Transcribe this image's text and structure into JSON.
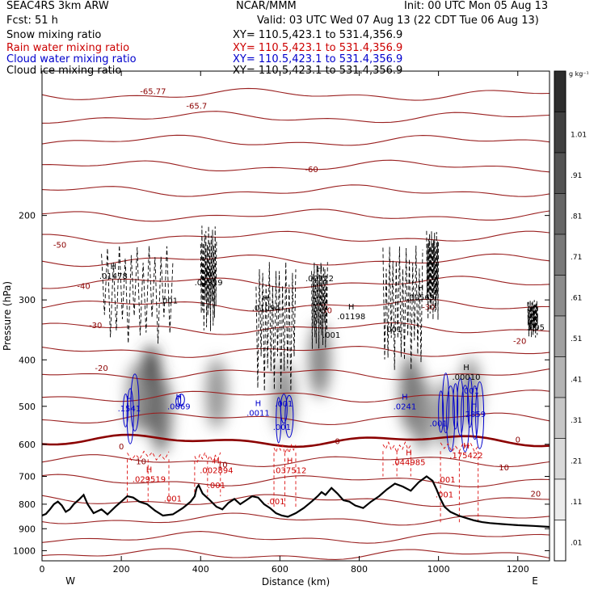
{
  "header": {
    "model": "SEAC4RS  3km ARW",
    "org": "NCAR/MMM",
    "init": "Init: 00 UTC Mon 05 Aug 13",
    "fcst": "Fcst:     51 h",
    "valid": "Valid: 03 UTC Wed 07 Aug 13 (22 CDT Tue 06 Aug 13)",
    "fields": [
      {
        "label": "Snow mixing ratio",
        "xy": "XY=  110.5,423.1  to  531.4,356.9",
        "color": "#000000"
      },
      {
        "label": "Rain water mixing ratio",
        "xy": "XY=  110.5,423.1  to  531.4,356.9",
        "color": "#cc0000"
      },
      {
        "label": "Cloud water mixing ratio",
        "xy": "XY=  110.5,423.1  to  531.4,356.9",
        "color": "#0000cc"
      },
      {
        "label": "Cloud ice mixing ratio",
        "xy": "XY=  110.5,423.1  to  531.4,356.9",
        "color": "#000000"
      }
    ]
  },
  "chart_data": {
    "type": "heatmap",
    "title": "",
    "xlabel": "Distance (km)",
    "ylabel": "Pressure (hPa)",
    "xlim": [
      0,
      1280
    ],
    "ylim": [
      100,
      1050
    ],
    "y_scale": "log",
    "x_ticks": [
      0,
      200,
      400,
      600,
      800,
      1000,
      1200
    ],
    "y_ticks": [
      200,
      300,
      400,
      500,
      600,
      700,
      800,
      900,
      1000
    ],
    "x_end_labels": {
      "left": "W",
      "right": "E"
    },
    "colorbar": {
      "unit": "g kg⁻¹",
      "ticks": [
        "1.01",
        ".91",
        ".81",
        ".71",
        ".61",
        ".51",
        ".41",
        ".31",
        ".21",
        ".11",
        ".01"
      ],
      "min": 0.01,
      "max": 1.11
    },
    "terrain": [
      [
        0,
        845
      ],
      [
        10,
        838
      ],
      [
        20,
        820
      ],
      [
        30,
        800
      ],
      [
        40,
        790
      ],
      [
        50,
        805
      ],
      [
        60,
        830
      ],
      [
        70,
        820
      ],
      [
        80,
        800
      ],
      [
        95,
        780
      ],
      [
        105,
        765
      ],
      [
        115,
        800
      ],
      [
        130,
        835
      ],
      [
        150,
        820
      ],
      [
        165,
        840
      ],
      [
        185,
        810
      ],
      [
        200,
        790
      ],
      [
        215,
        770
      ],
      [
        230,
        775
      ],
      [
        245,
        790
      ],
      [
        265,
        800
      ],
      [
        285,
        825
      ],
      [
        305,
        845
      ],
      [
        330,
        840
      ],
      [
        355,
        815
      ],
      [
        375,
        790
      ],
      [
        385,
        770
      ],
      [
        390,
        740
      ],
      [
        395,
        730
      ],
      [
        405,
        760
      ],
      [
        420,
        780
      ],
      [
        440,
        810
      ],
      [
        455,
        820
      ],
      [
        470,
        795
      ],
      [
        485,
        780
      ],
      [
        500,
        800
      ],
      [
        515,
        785
      ],
      [
        530,
        770
      ],
      [
        545,
        775
      ],
      [
        560,
        800
      ],
      [
        575,
        815
      ],
      [
        590,
        835
      ],
      [
        605,
        845
      ],
      [
        620,
        850
      ],
      [
        640,
        835
      ],
      [
        660,
        815
      ],
      [
        680,
        790
      ],
      [
        695,
        770
      ],
      [
        705,
        755
      ],
      [
        715,
        765
      ],
      [
        730,
        740
      ],
      [
        745,
        760
      ],
      [
        760,
        785
      ],
      [
        775,
        790
      ],
      [
        790,
        805
      ],
      [
        810,
        815
      ],
      [
        830,
        790
      ],
      [
        850,
        770
      ],
      [
        870,
        745
      ],
      [
        890,
        725
      ],
      [
        910,
        735
      ],
      [
        930,
        750
      ],
      [
        950,
        720
      ],
      [
        970,
        700
      ],
      [
        985,
        715
      ],
      [
        995,
        745
      ],
      [
        1005,
        780
      ],
      [
        1015,
        810
      ],
      [
        1030,
        830
      ],
      [
        1050,
        845
      ],
      [
        1070,
        855
      ],
      [
        1090,
        865
      ],
      [
        1110,
        872
      ],
      [
        1130,
        876
      ],
      [
        1160,
        880
      ],
      [
        1200,
        885
      ],
      [
        1240,
        888
      ],
      [
        1280,
        892
      ]
    ],
    "temperature_contours": [
      {
        "label": "-65.77",
        "x": 280,
        "p": 110
      },
      {
        "label": "-65.7",
        "x": 390,
        "p": 118
      },
      {
        "label": "-60",
        "x": 680,
        "p": 160
      },
      {
        "label": "-50",
        "x": 45,
        "p": 230
      },
      {
        "label": "-40",
        "x": 105,
        "p": 280
      },
      {
        "label": "-30",
        "x": 135,
        "p": 338
      },
      {
        "label": "-30",
        "x": 715,
        "p": 315
      },
      {
        "label": "-30",
        "x": 975,
        "p": 310
      },
      {
        "label": "-20",
        "x": 150,
        "p": 415
      },
      {
        "label": "-20",
        "x": 1205,
        "p": 365
      },
      {
        "label": "0",
        "x": 200,
        "p": 605
      },
      {
        "label": "0",
        "x": 745,
        "p": 590
      },
      {
        "label": "0",
        "x": 1200,
        "p": 585
      },
      {
        "label": "10",
        "x": 250,
        "p": 650
      },
      {
        "label": "10",
        "x": 455,
        "p": 660
      },
      {
        "label": "10",
        "x": 1165,
        "p": 670
      },
      {
        "label": "20",
        "x": 1245,
        "p": 760
      }
    ],
    "freezing_level_hPa": 590,
    "snow_max_labels": [
      {
        "label": "H",
        "sub": ".01478",
        "x": 180,
        "p": 262
      },
      {
        "label": "H",
        "sub": ".01319",
        "x": 420,
        "p": 270
      },
      {
        "label": "H",
        "sub": ".01094",
        "x": 565,
        "p": 305
      },
      {
        "label": "H",
        "sub": ".00722",
        "x": 700,
        "p": 265
      },
      {
        "label": "H",
        "sub": ".01198",
        "x": 780,
        "p": 318
      },
      {
        "label": "H",
        "sub": ".00569",
        "x": 955,
        "p": 290
      },
      {
        "label": "H",
        "sub": ".00010",
        "x": 1070,
        "p": 425
      },
      {
        "label": "H",
        "sub": ".005",
        "x": 1245,
        "p": 335
      }
    ],
    "ice_min_labels": [
      {
        "label": ".001",
        "x": 320,
        "p": 305
      },
      {
        "label": ".001",
        "x": 730,
        "p": 360
      },
      {
        "label": ".001",
        "x": 885,
        "p": 350
      }
    ],
    "cloud_water_labels": [
      {
        "label": "H",
        "sub": ".1541",
        "x": 220,
        "p": 495
      },
      {
        "label": "H",
        "sub": ".0069",
        "x": 345,
        "p": 490
      },
      {
        "label": "H",
        "sub": ".0011",
        "x": 545,
        "p": 505
      },
      {
        "label": "H",
        "sub": ".0241",
        "x": 915,
        "p": 490
      },
      {
        "label": "H",
        "sub": ".2859",
        "x": 1090,
        "p": 508
      },
      {
        "label": ".001",
        "x": 610,
        "p": 500
      },
      {
        "label": ".001",
        "x": 605,
        "p": 560
      },
      {
        "label": ".001",
        "x": 1000,
        "p": 550
      },
      {
        "label": ".001",
        "x": 1080,
        "p": 470
      }
    ],
    "rain_labels": [
      {
        "label": "H",
        "sub": ".029519",
        "x": 270,
        "p": 695
      },
      {
        "label": "H",
        "sub": ".002894",
        "x": 440,
        "p": 665
      },
      {
        "label": "H",
        "sub": ".037512",
        "x": 625,
        "p": 665
      },
      {
        "label": "H",
        "sub": ".044985",
        "x": 925,
        "p": 640
      },
      {
        "label": "H",
        "sub": ".175422",
        "x": 1070,
        "p": 620
      },
      {
        "label": ".001",
        "x": 330,
        "p": 790
      },
      {
        "label": ".001",
        "x": 440,
        "p": 740
      },
      {
        "label": ".001",
        "x": 590,
        "p": 800
      },
      {
        "label": ".001",
        "x": 1020,
        "p": 720
      },
      {
        "label": ".001",
        "x": 1015,
        "p": 775
      }
    ],
    "snow_shading_cores": [
      {
        "x": 275,
        "p": 460,
        "intensity": 1.0
      },
      {
        "x": 300,
        "p": 520,
        "intensity": 0.7
      },
      {
        "x": 240,
        "p": 480,
        "intensity": 0.5
      },
      {
        "x": 440,
        "p": 470,
        "intensity": 0.5
      },
      {
        "x": 610,
        "p": 480,
        "intensity": 0.55
      },
      {
        "x": 700,
        "p": 400,
        "intensity": 0.6
      },
      {
        "x": 930,
        "p": 470,
        "intensity": 0.7
      },
      {
        "x": 960,
        "p": 520,
        "intensity": 0.55
      },
      {
        "x": 1020,
        "p": 520,
        "intensity": 0.5
      },
      {
        "x": 1080,
        "p": 470,
        "intensity": 0.5
      }
    ]
  }
}
